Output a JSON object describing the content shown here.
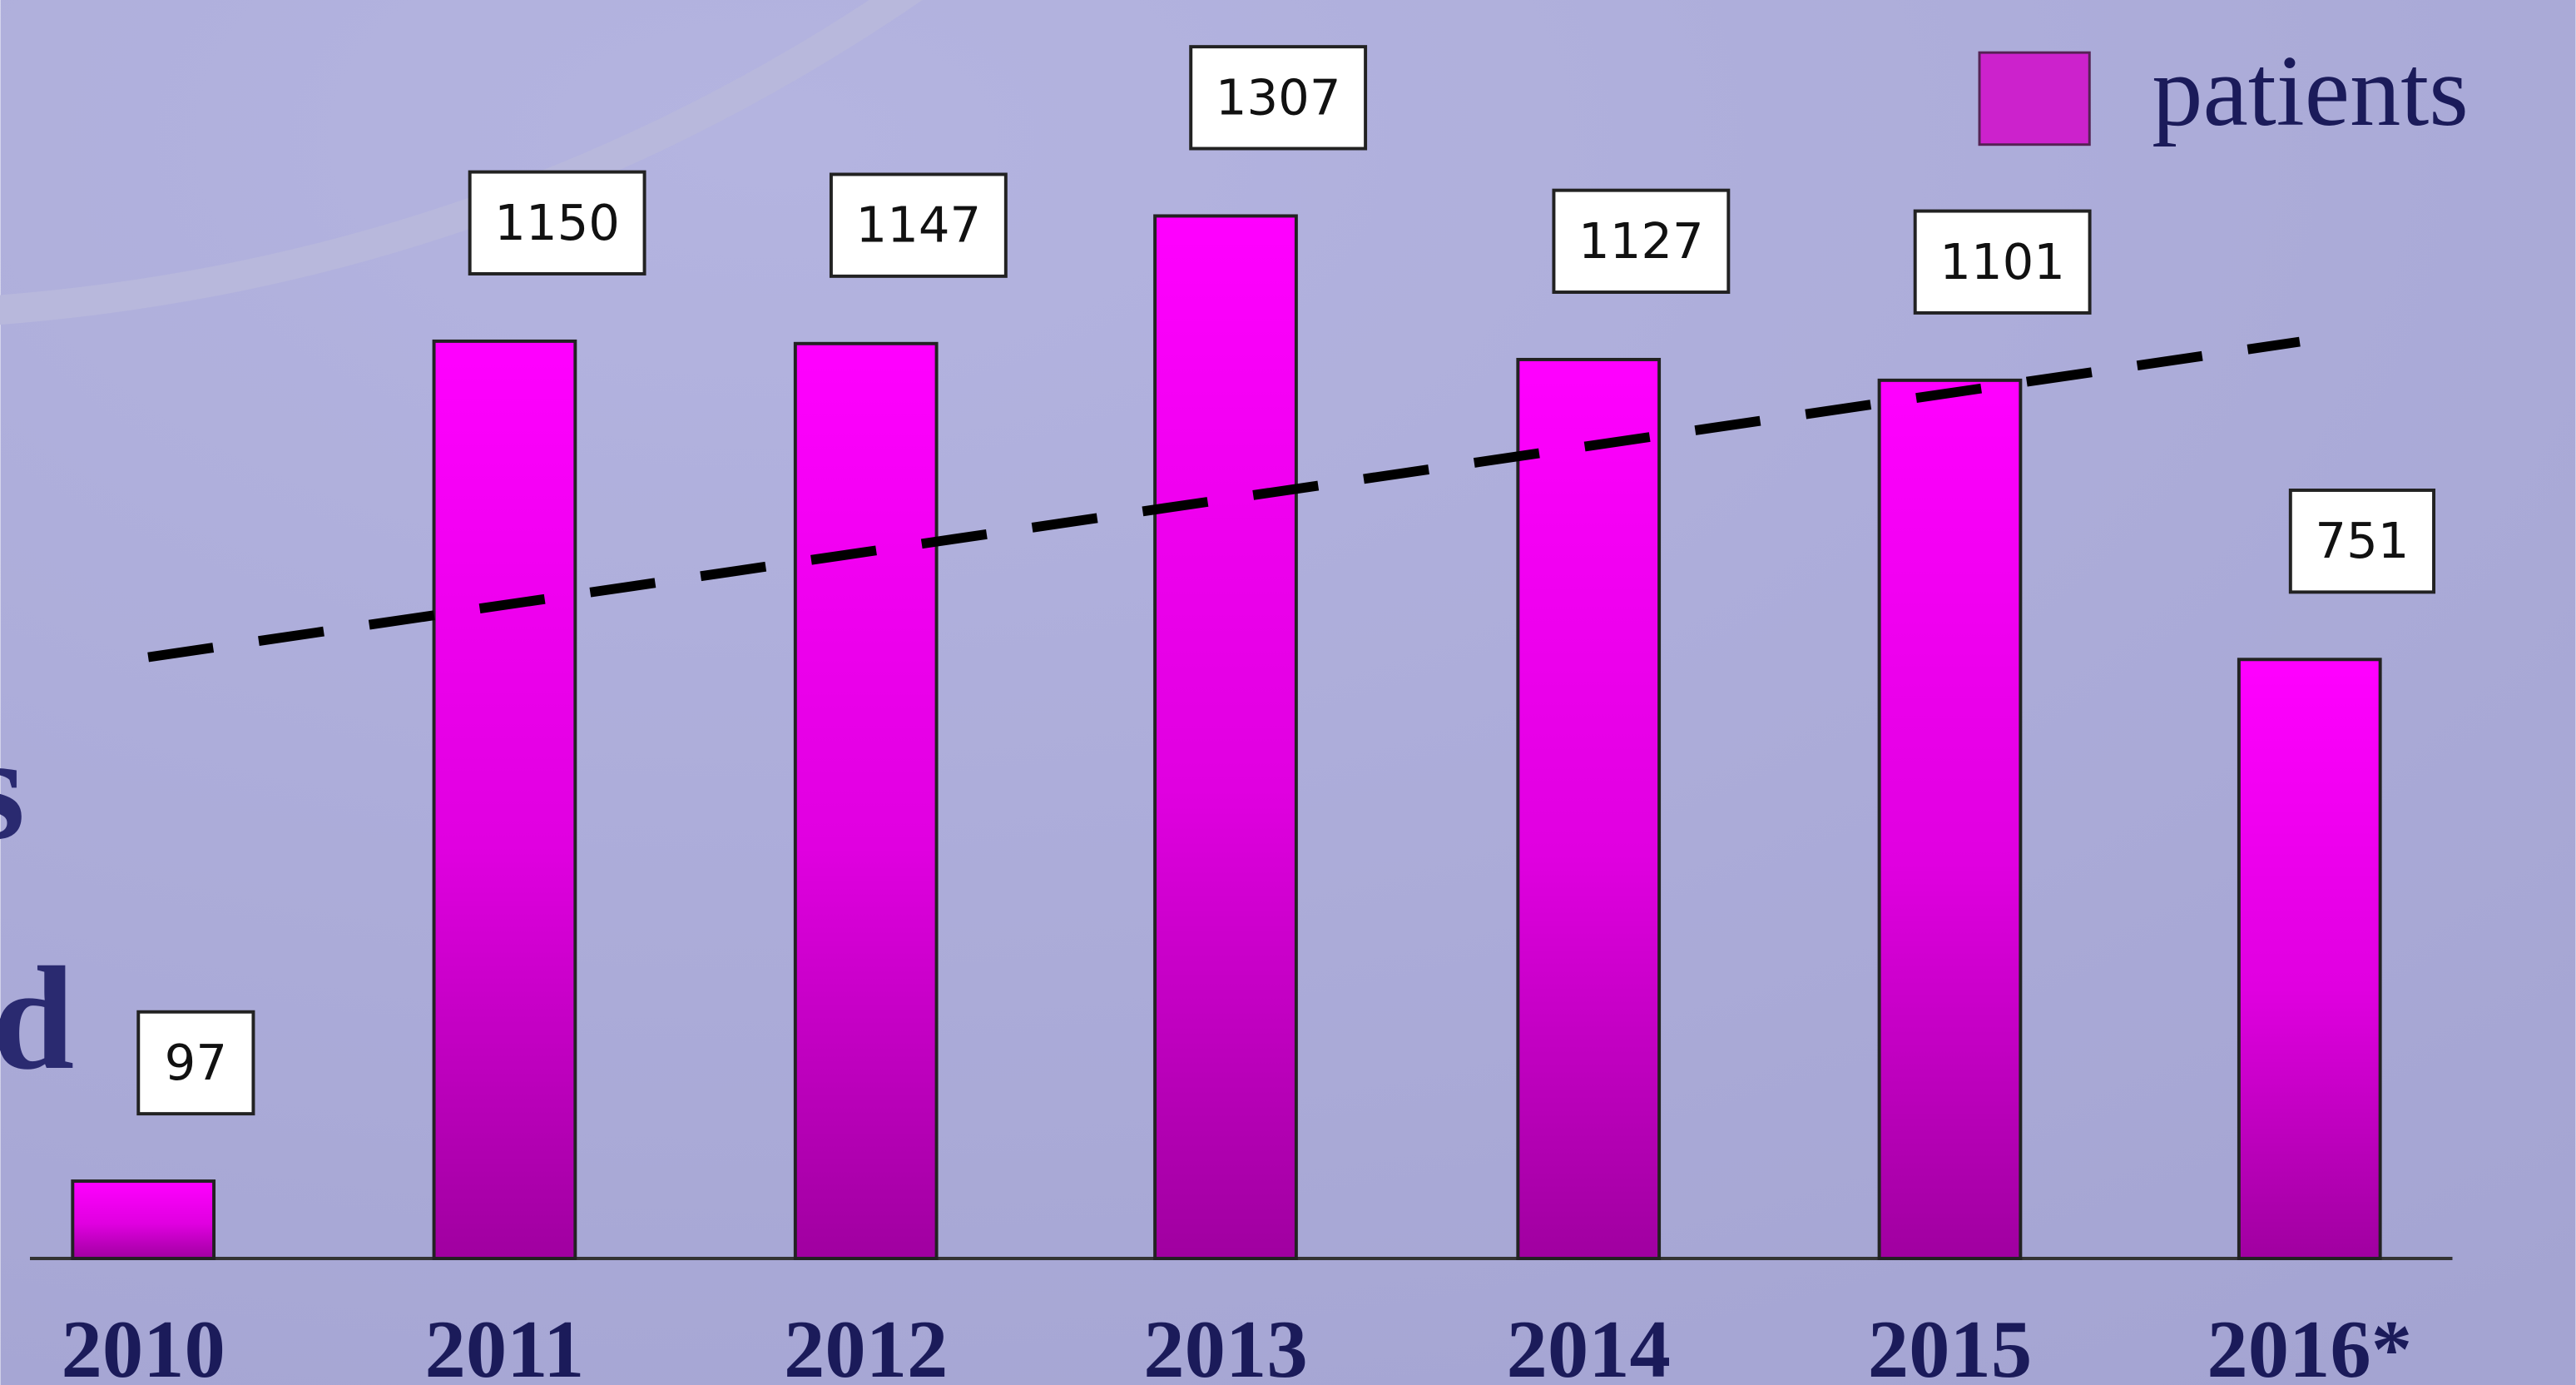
{
  "chart_data": {
    "type": "bar",
    "categories": [
      "2010",
      "2011",
      "2012",
      "2013",
      "2014",
      "2015",
      "2016*"
    ],
    "series": [
      {
        "name": "patients",
        "color": "#ff00ff",
        "values": [
          97,
          1150,
          1147,
          1307,
          1127,
          1101,
          751
        ]
      }
    ],
    "ylim": [
      0,
      1380
    ],
    "annotations": [
      "s",
      "ed"
    ]
  }
}
